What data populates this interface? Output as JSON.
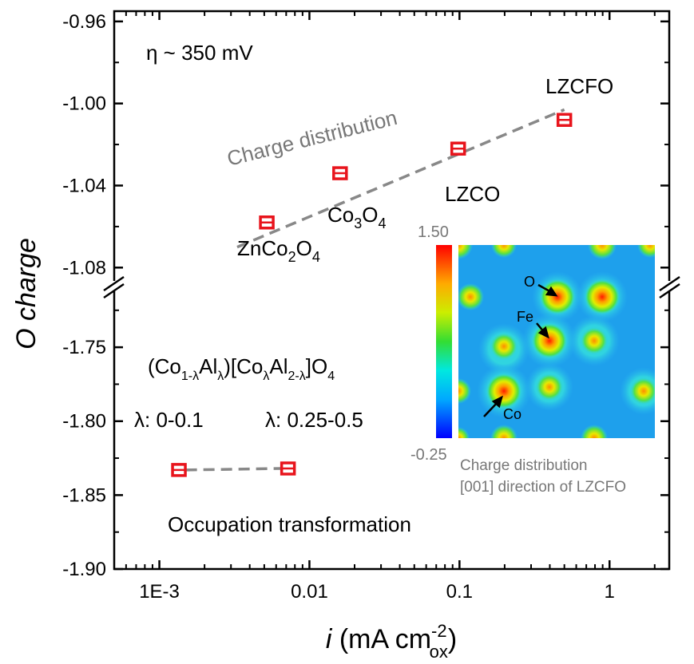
{
  "chart_data": {
    "type": "scatter",
    "x_scale": "log",
    "xlim": [
      0.0005,
      2.5
    ],
    "x_ticks": [
      {
        "value": 0.001,
        "label": "1E-3"
      },
      {
        "value": 0.01,
        "label": "0.01"
      },
      {
        "value": 0.1,
        "label": "0.1"
      },
      {
        "value": 1,
        "label": "1"
      }
    ],
    "y_axis_broken": true,
    "ylim_upper": [
      -1.09,
      -0.955
    ],
    "ylim_lower": [
      -1.9,
      -1.71
    ],
    "y_ticks_upper": [
      "-0.96",
      "-1.00",
      "-1.04",
      "-1.08"
    ],
    "y_ticks_lower": [
      "-1.75",
      "-1.80",
      "-1.85",
      "-1.90"
    ],
    "xlabel": {
      "italic": "i",
      "text": " (mA cm",
      "sup": "-2",
      "sub": "ox",
      "close": ")"
    },
    "ylabel": {
      "italic_o": "O",
      "italic_rest": " charge"
    },
    "points": [
      {
        "label": "ZnCo2O4",
        "x": 0.0052,
        "y": -1.058
      },
      {
        "label": "Co3O4",
        "x": 0.016,
        "y": -1.034
      },
      {
        "label": "LZCO",
        "x": 0.098,
        "y": -1.022
      },
      {
        "label": "LZCFO",
        "x": 0.5,
        "y": -1.008
      },
      {
        "label": "λ: 0-0.1",
        "x": 0.00135,
        "y": -1.833
      },
      {
        "label": "λ: 0.25-0.5",
        "x": 0.0072,
        "y": -1.832
      }
    ],
    "trend_lines": [
      {
        "name": "Charge distribution",
        "x": [
          0.0033,
          0.5
        ],
        "y": [
          -1.07,
          -1.003
        ]
      },
      {
        "name": "Occupation transformation",
        "x": [
          0.0015,
          0.0065
        ],
        "y": [
          -1.833,
          -1.832
        ]
      }
    ],
    "marker_color": "#e8141c",
    "line_color": "#888888"
  },
  "annotations": {
    "eta": "η ~ 350 mV",
    "charge_distribution": "Charge distribution",
    "lzcfo": "LZCFO",
    "lzco": "LZCO",
    "co3o4": {
      "a": "Co",
      "b": "3",
      "c": "O",
      "d": "4"
    },
    "znco2o4": {
      "a": "ZnCo",
      "b": "2",
      "c": "O",
      "d": "4"
    },
    "formula": {
      "p1": "(Co",
      "s1": "1-λ",
      "p2": "Al",
      "s2": "λ",
      "p3": ")[Co",
      "s3": "λ",
      "p4": "Al",
      "s4": "2-λ",
      "p5": "]O",
      "s5": "4"
    },
    "lambda1": "λ: 0-0.1",
    "lambda2": "λ: 0.25-0.5",
    "occupation": "Occupation transformation"
  },
  "inset": {
    "cbar_max": "1.50",
    "cbar_min": "-0.25",
    "label_o": "O",
    "label_fe": "Fe",
    "label_co": "Co",
    "caption1": "Charge distribution",
    "caption2": "[001] direction of LZCFO"
  }
}
